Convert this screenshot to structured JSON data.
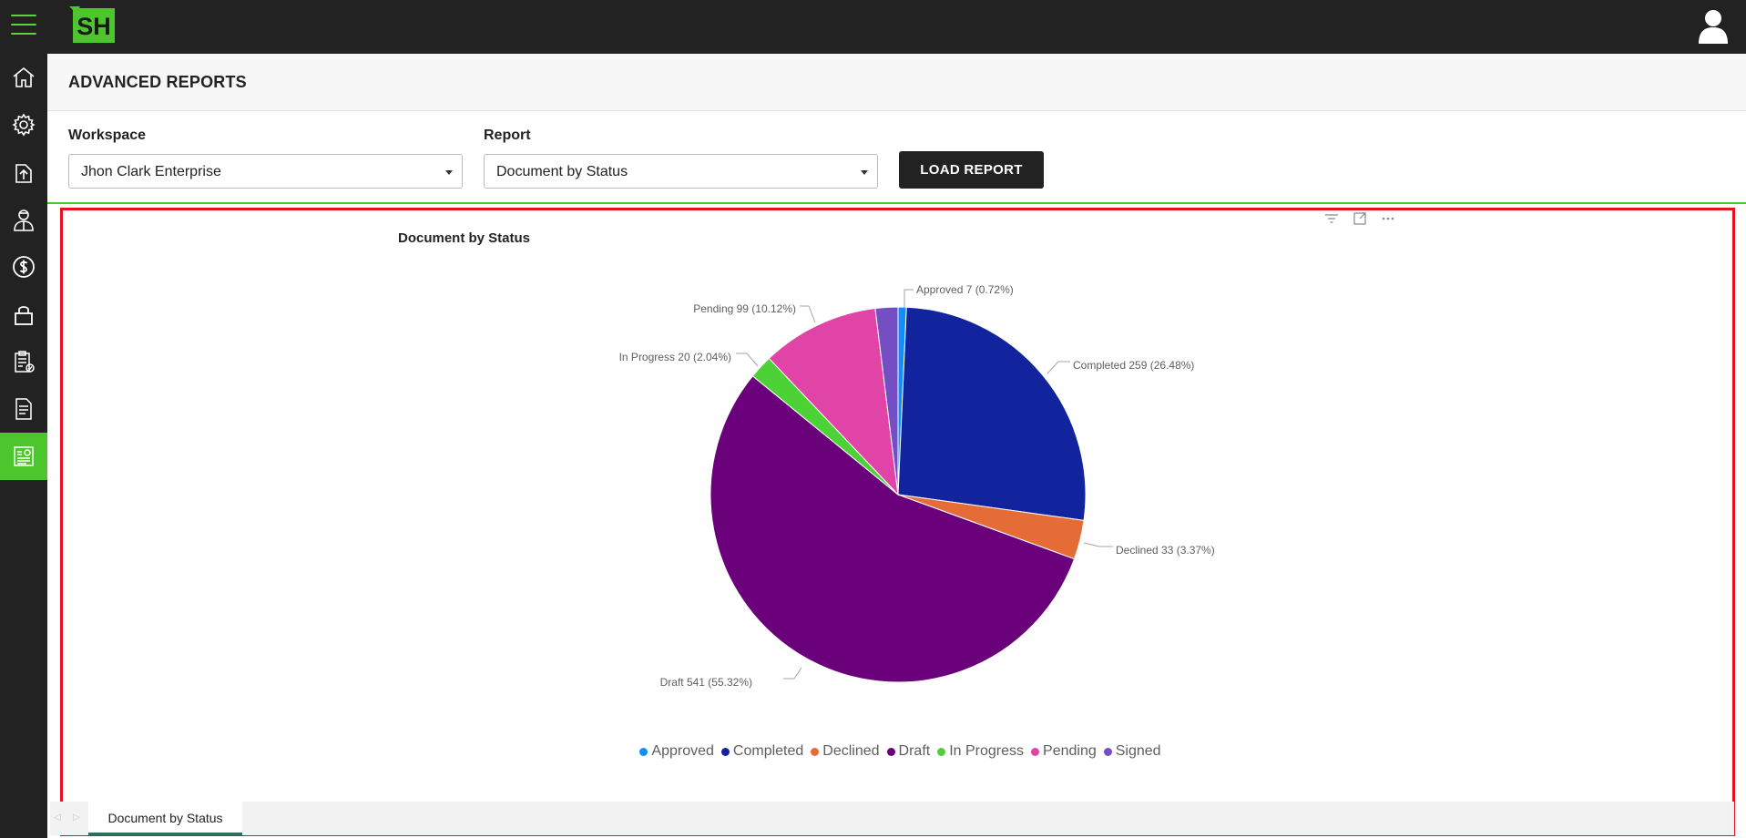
{
  "app": {
    "logo_text": "SH"
  },
  "page": {
    "title": "ADVANCED REPORTS"
  },
  "filters": {
    "workspace_label": "Workspace",
    "workspace_value": "Jhon Clark Enterprise",
    "report_label": "Report",
    "report_value": "Document by Status",
    "load_button": "LOAD REPORT"
  },
  "sidebar": {
    "items": [
      {
        "icon": "home-icon"
      },
      {
        "icon": "gear-icon"
      },
      {
        "icon": "upload-icon"
      },
      {
        "icon": "user-icon"
      },
      {
        "icon": "dollar-icon"
      },
      {
        "icon": "lock-icon"
      },
      {
        "icon": "clipboard-check-icon"
      },
      {
        "icon": "document-icon"
      },
      {
        "icon": "report-icon",
        "active": true
      }
    ]
  },
  "visual": {
    "title": "Document by Status",
    "icons": [
      "filter-icon",
      "focus-mode-icon",
      "more-options-icon"
    ]
  },
  "tabs": {
    "active": "Document by Status"
  },
  "chart_data": {
    "type": "pie",
    "title": "Document by Status",
    "slices": [
      {
        "label": "Approved",
        "value": 7,
        "percent": "0.72%",
        "color": "#118DFF",
        "data_label": "Approved 7 (0.72%)"
      },
      {
        "label": "Completed",
        "value": 259,
        "percent": "26.48%",
        "color": "#12239E",
        "data_label": "Completed 259 (26.48%)"
      },
      {
        "label": "Declined",
        "value": 33,
        "percent": "3.37%",
        "color": "#E66C37",
        "data_label": "Declined 33 (3.37%)"
      },
      {
        "label": "Draft",
        "value": 541,
        "percent": "55.32%",
        "color": "#6B007B",
        "data_label": "Draft 541 (55.32%)"
      },
      {
        "label": "In Progress",
        "value": 20,
        "percent": "2.04%",
        "color": "#4CD237",
        "data_label": "In Progress 20 (2.04%)"
      },
      {
        "label": "Pending",
        "value": 99,
        "percent": "10.12%",
        "color": "#E044A7",
        "data_label": "Pending 99 (10.12%)"
      },
      {
        "label": "Signed",
        "value": 19,
        "percent": "",
        "color": "#744EC2",
        "data_label": ""
      }
    ],
    "legend": [
      "Approved",
      "Completed",
      "Declined",
      "Draft",
      "In Progress",
      "Pending",
      "Signed"
    ],
    "legend_position": "bottom-center"
  }
}
